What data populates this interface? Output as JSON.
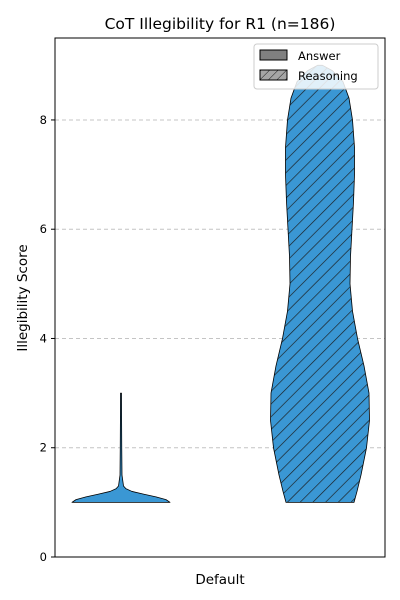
{
  "chart_data": {
    "type": "violin",
    "title": "CoT Illegibility for R1 (n=186)",
    "xlabel": "Default",
    "ylabel": "Illegibility Score",
    "ylim": [
      0,
      9.5
    ],
    "yticks": [
      0,
      2,
      4,
      6,
      8
    ],
    "grid": "y-dashed",
    "legend_position": "top-right",
    "legend": [
      {
        "label": "Answer",
        "swatch": "#808080",
        "hatch": false
      },
      {
        "label": "Reasoning",
        "swatch": "#a6a6a6",
        "hatch": true
      }
    ],
    "violins": [
      {
        "name": "Answer",
        "color": "#3a97d4",
        "hatch": false,
        "min": 1.0,
        "max": 3.0,
        "profile": [
          [
            1.0,
            0.98
          ],
          [
            1.05,
            0.9
          ],
          [
            1.1,
            0.7
          ],
          [
            1.15,
            0.45
          ],
          [
            1.2,
            0.22
          ],
          [
            1.25,
            0.1
          ],
          [
            1.3,
            0.05
          ],
          [
            1.5,
            0.02
          ],
          [
            2.0,
            0.015
          ],
          [
            2.5,
            0.012
          ],
          [
            3.0,
            0.01
          ]
        ]
      },
      {
        "name": "Reasoning",
        "color": "#3a97d4",
        "hatch": true,
        "min": 1.0,
        "max": 9.0,
        "profile": [
          [
            1.0,
            0.68
          ],
          [
            1.2,
            0.74
          ],
          [
            1.5,
            0.82
          ],
          [
            2.0,
            0.93
          ],
          [
            2.5,
            0.99
          ],
          [
            3.0,
            0.98
          ],
          [
            3.5,
            0.88
          ],
          [
            4.0,
            0.75
          ],
          [
            4.5,
            0.65
          ],
          [
            5.0,
            0.6
          ],
          [
            5.5,
            0.61
          ],
          [
            6.0,
            0.64
          ],
          [
            6.5,
            0.67
          ],
          [
            7.0,
            0.69
          ],
          [
            7.5,
            0.69
          ],
          [
            8.0,
            0.65
          ],
          [
            8.4,
            0.58
          ],
          [
            8.7,
            0.46
          ],
          [
            8.9,
            0.25
          ],
          [
            9.0,
            0.05
          ]
        ]
      }
    ]
  }
}
